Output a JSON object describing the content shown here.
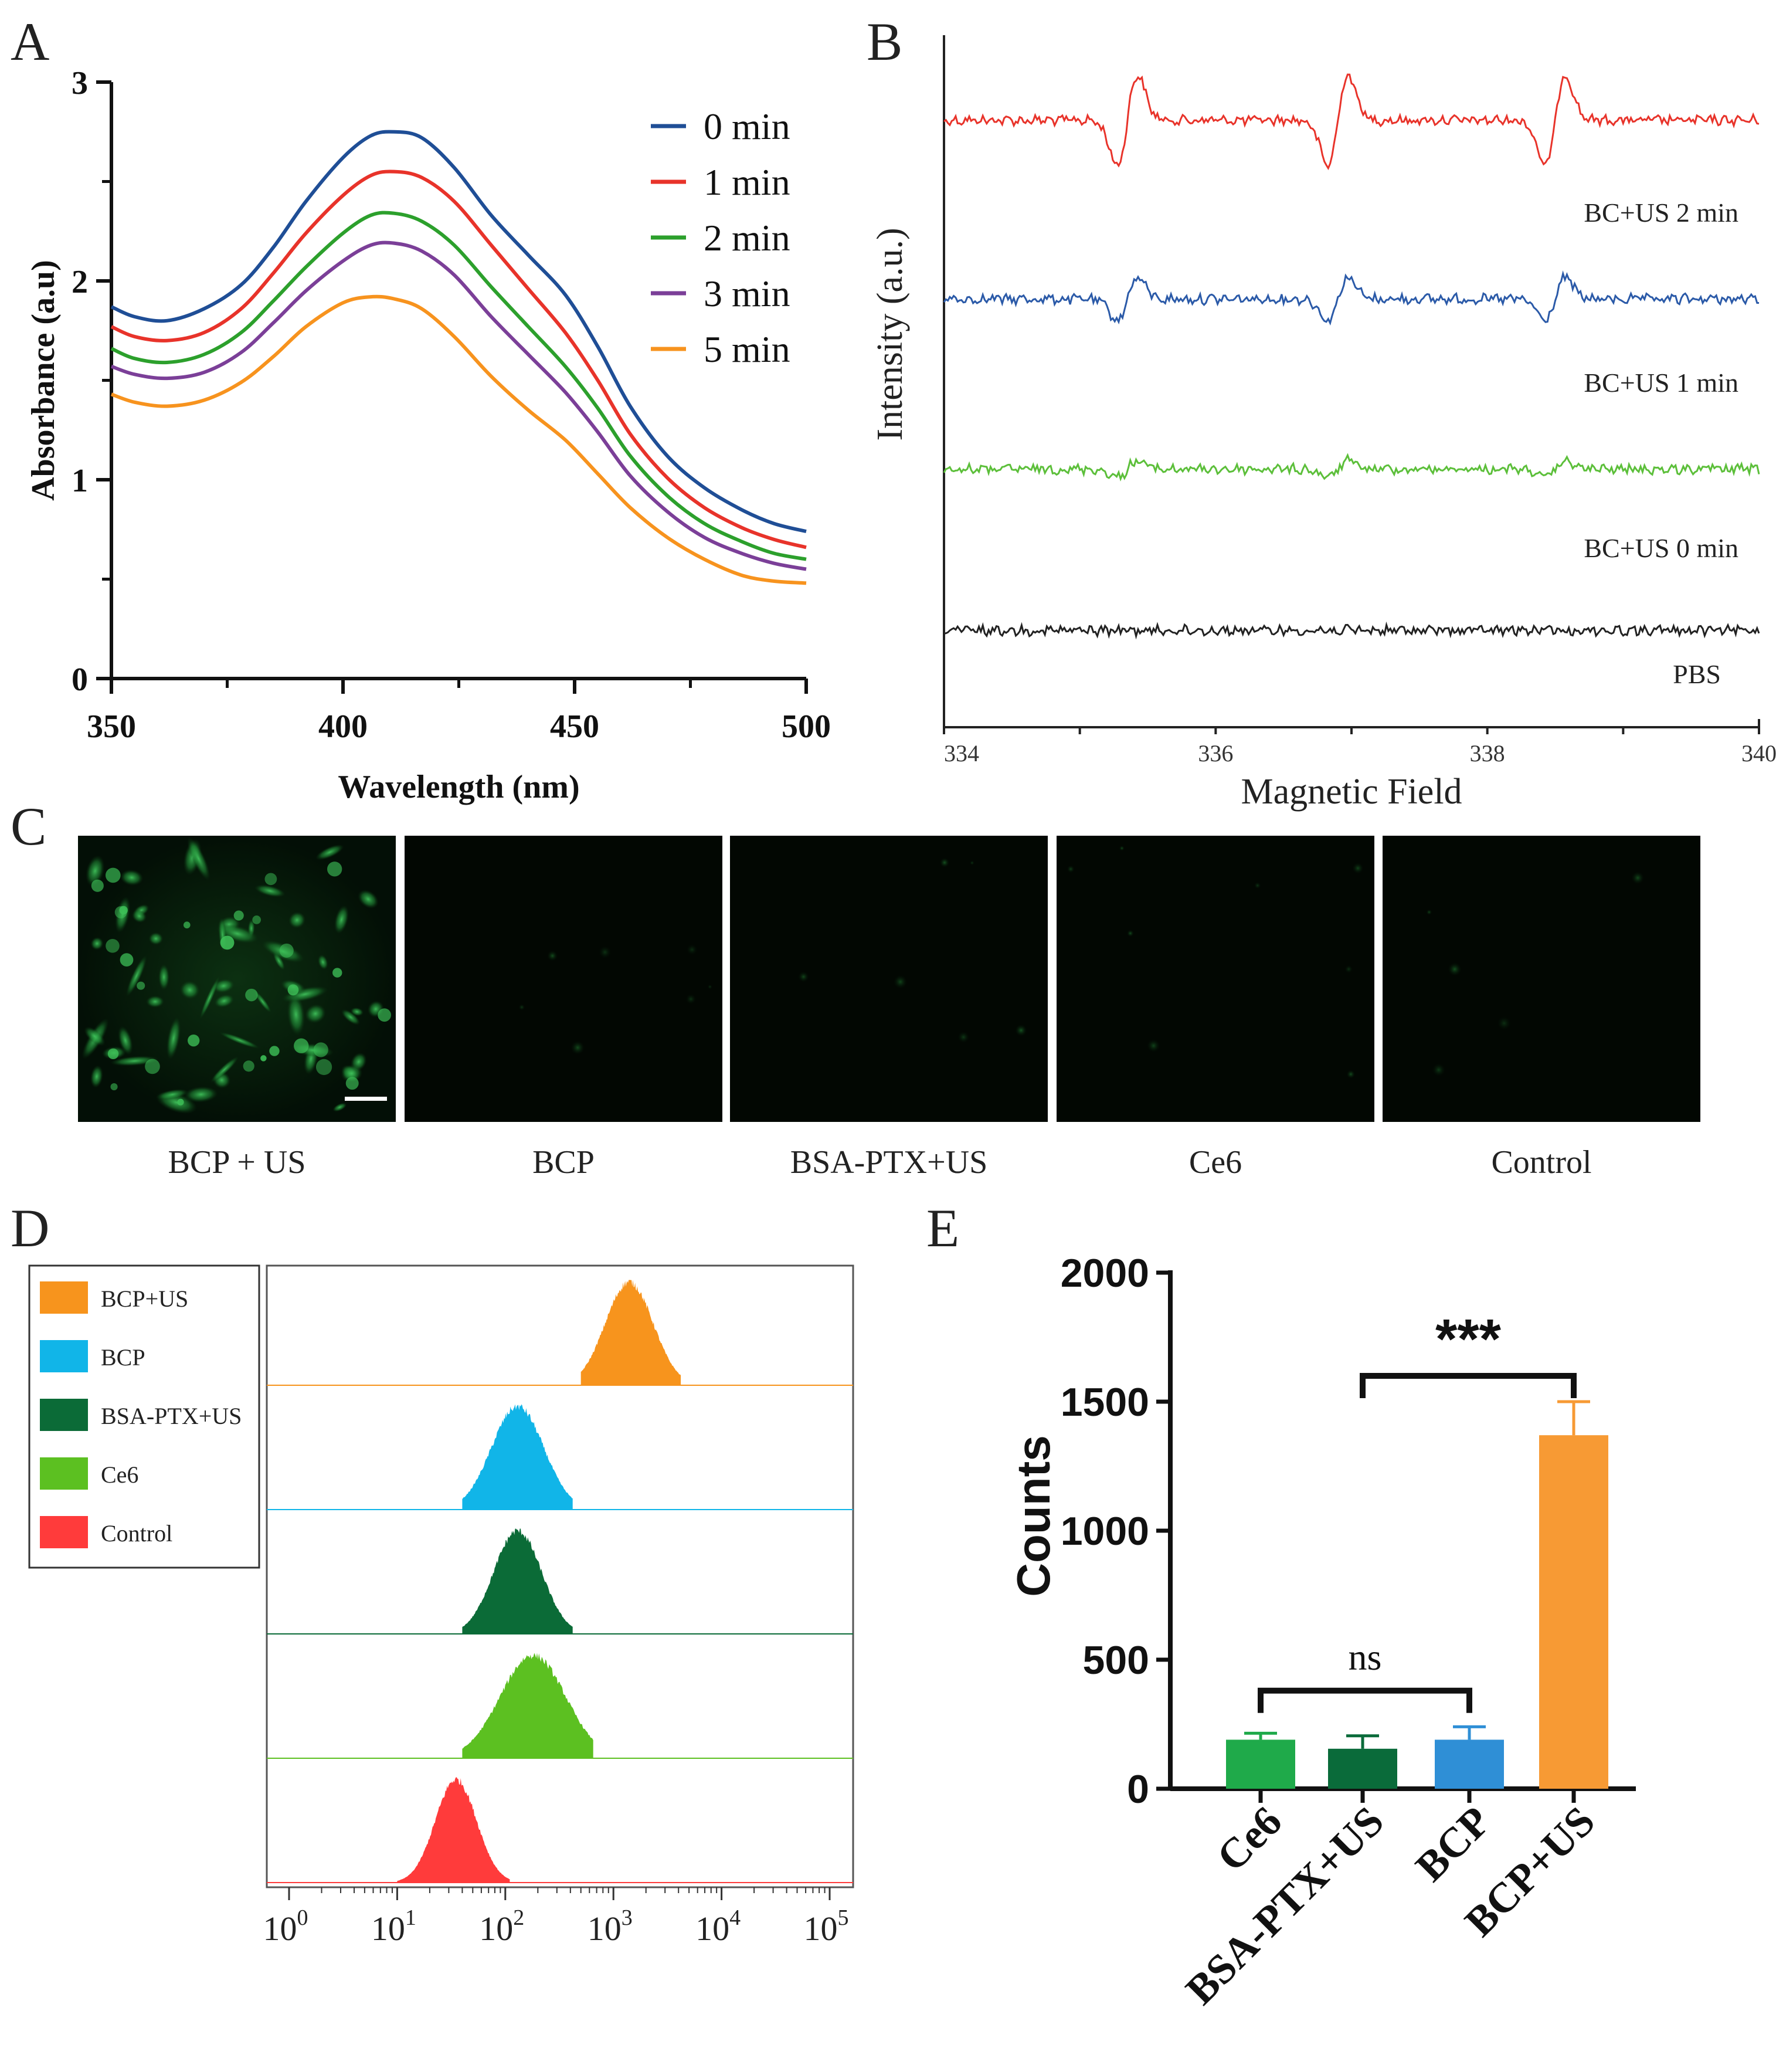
{
  "panel_letters": {
    "A": "A",
    "B": "B",
    "C": "C",
    "D": "D",
    "E": "E"
  },
  "colors": {
    "blue": "#1f4e96",
    "red": "#e8332a",
    "green": "#2ca02c",
    "purple": "#7b3f98",
    "orange": "#f7931e",
    "epr_red": "#e8332a",
    "epr_blue": "#2b5aa8",
    "epr_green": "#5cbf3a",
    "epr_black": "#222222",
    "fc_orange": "#f7941d",
    "fc_cyan": "#11b5e8",
    "fc_darkgreen": "#0b6b37",
    "fc_green": "#5cc021",
    "fc_red": "#ff3b3b",
    "bar_ce6": "#1faa4a",
    "bar_bsa": "#0a6b3a",
    "bar_bcp": "#2f8fd6",
    "bar_bcpus": "#f79a34",
    "micro_bg": "#020702",
    "micro_cell": "#2a8f3c"
  },
  "chart_data": [
    {
      "panel": "A",
      "type": "line",
      "title": "",
      "xlabel": "Wavelength (nm)",
      "ylabel": "Absorbance (a.u)",
      "xlim": [
        350,
        500
      ],
      "ylim": [
        0,
        3
      ],
      "xticks": [
        "350",
        "400",
        "450",
        "500"
      ],
      "yticks": [
        "0",
        "1",
        "2",
        "3"
      ],
      "legend_position": "top-right",
      "x": [
        350,
        355,
        362,
        370,
        378,
        385,
        392,
        400,
        406,
        411,
        417,
        424,
        432,
        440,
        448,
        455,
        462,
        470,
        478,
        486,
        493,
        500
      ],
      "series": [
        {
          "name": "0 min",
          "color_key": "blue",
          "values": [
            1.87,
            1.82,
            1.8,
            1.86,
            1.98,
            2.17,
            2.4,
            2.62,
            2.73,
            2.75,
            2.72,
            2.57,
            2.33,
            2.13,
            1.93,
            1.67,
            1.37,
            1.12,
            0.96,
            0.85,
            0.78,
            0.74
          ]
        },
        {
          "name": "1 min",
          "color_key": "red",
          "values": [
            1.77,
            1.72,
            1.7,
            1.74,
            1.86,
            2.04,
            2.24,
            2.43,
            2.53,
            2.55,
            2.52,
            2.4,
            2.18,
            1.96,
            1.74,
            1.5,
            1.23,
            1.01,
            0.86,
            0.76,
            0.7,
            0.66
          ]
        },
        {
          "name": "2 min",
          "color_key": "green",
          "values": [
            1.66,
            1.61,
            1.59,
            1.63,
            1.74,
            1.9,
            2.07,
            2.24,
            2.33,
            2.34,
            2.3,
            2.18,
            1.97,
            1.77,
            1.57,
            1.36,
            1.12,
            0.92,
            0.78,
            0.69,
            0.63,
            0.6
          ]
        },
        {
          "name": "3 min",
          "color_key": "purple",
          "values": [
            1.57,
            1.53,
            1.51,
            1.54,
            1.64,
            1.79,
            1.95,
            2.1,
            2.18,
            2.19,
            2.15,
            2.03,
            1.82,
            1.63,
            1.44,
            1.24,
            1.02,
            0.84,
            0.71,
            0.63,
            0.58,
            0.55
          ]
        },
        {
          "name": "5 min",
          "color_key": "orange",
          "values": [
            1.43,
            1.39,
            1.37,
            1.4,
            1.49,
            1.62,
            1.77,
            1.89,
            1.92,
            1.91,
            1.86,
            1.72,
            1.52,
            1.35,
            1.2,
            1.03,
            0.86,
            0.71,
            0.6,
            0.52,
            0.49,
            0.48
          ]
        }
      ]
    },
    {
      "panel": "B",
      "type": "line",
      "title": "",
      "xlabel": "Magnetic Field",
      "ylabel": "Intensity (a.u.)",
      "xlim": [
        334,
        340
      ],
      "xticks": [
        "334",
        "336",
        "338",
        "340"
      ],
      "peak_centers": [
        335.35,
        336.9,
        338.5
      ],
      "series": [
        {
          "name": "BC+US 2 min",
          "color_key": "epr_red",
          "peak_amplitude": 3.6,
          "offset_level": 4
        },
        {
          "name": "BC+US 1 min",
          "color_key": "epr_blue",
          "peak_amplitude": 1.7,
          "offset_level": 3
        },
        {
          "name": "BC+US 0 min",
          "color_key": "epr_green",
          "peak_amplitude": 0.65,
          "offset_level": 2
        },
        {
          "name": "PBS",
          "color_key": "epr_black",
          "peak_amplitude": 0.0,
          "offset_level": 1
        }
      ]
    },
    {
      "panel": "D",
      "type": "area",
      "title": "",
      "xlabel": "",
      "xscale": "log10",
      "xlim": [
        1,
        100000
      ],
      "xtick_bases": [
        "10",
        "10",
        "10",
        "10",
        "10",
        "10"
      ],
      "xtick_exponents": [
        "0",
        "1",
        "2",
        "3",
        "4",
        "5"
      ],
      "legend_position": "left",
      "series": [
        {
          "name": "BCP+US",
          "color_key": "fc_orange",
          "peak": 1400,
          "log_sigma": 0.22,
          "lower_limit": 500,
          "upper_limit": 4200
        },
        {
          "name": "BCP",
          "color_key": "fc_cyan",
          "peak": 130,
          "log_sigma": 0.24,
          "lower_limit": 40,
          "upper_limit": 420
        },
        {
          "name": "BSA-PTX+US",
          "color_key": "fc_darkgreen",
          "peak": 130,
          "log_sigma": 0.22,
          "lower_limit": 40,
          "upper_limit": 420
        },
        {
          "name": "Ce6",
          "color_key": "fc_green",
          "peak": 180,
          "log_sigma": 0.3,
          "lower_limit": 40,
          "upper_limit": 650
        },
        {
          "name": "Control",
          "color_key": "fc_red",
          "peak": 35,
          "log_sigma": 0.19,
          "lower_limit": 10,
          "upper_limit": 110
        }
      ]
    },
    {
      "panel": "E",
      "type": "bar",
      "title": "",
      "xlabel": "",
      "ylabel": "Counts",
      "ylim": [
        0,
        2000
      ],
      "yticks": [
        "0",
        "500",
        "1000",
        "1500",
        "2000"
      ],
      "categories": [
        "Ce6",
        "BSA-PTX+US",
        "BCP",
        "BCP+US"
      ],
      "values": [
        190,
        155,
        190,
        1370
      ],
      "errors": [
        25,
        50,
        50,
        130
      ],
      "color_keys": [
        "bar_ce6",
        "bar_bsa",
        "bar_bcp",
        "bar_bcpus"
      ],
      "significance": [
        {
          "label": "ns",
          "from": 0,
          "to": 2,
          "y": 380
        },
        {
          "label": "***",
          "from": 1,
          "to": 3,
          "y": 1600
        }
      ]
    }
  ],
  "panel_c": {
    "labels": [
      "BCP + US",
      "BCP",
      "BSA-PTX+US",
      "Ce6",
      "Control"
    ],
    "cell_density": [
      1.0,
      0.06,
      0.05,
      0.07,
      0.04
    ]
  }
}
